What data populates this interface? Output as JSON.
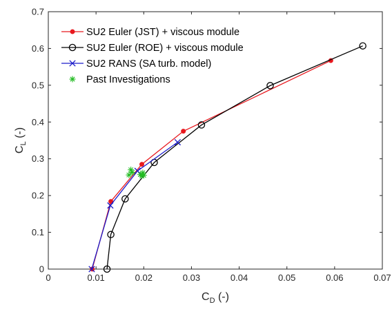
{
  "chart_data": {
    "type": "line",
    "title": "",
    "xlabel": "C_D (-)",
    "ylabel": "C_L (-)",
    "xlabel_parts": {
      "main": "C",
      "sub": "D",
      "rest": " (-)"
    },
    "ylabel_parts": {
      "main": "C",
      "sub": "L",
      "rest": " (-)"
    },
    "xlim": [
      0,
      0.07
    ],
    "ylim": [
      0,
      0.7
    ],
    "xticks": [
      "0",
      "0.01",
      "0.02",
      "0.03",
      "0.04",
      "0.05",
      "0.06",
      "0.07"
    ],
    "yticks": [
      "0",
      "0.1",
      "0.2",
      "0.3",
      "0.4",
      "0.5",
      "0.6",
      "0.7"
    ],
    "grid": false,
    "legend_position": "top-left",
    "series": [
      {
        "name": "SU2 Euler (JST) + viscous module",
        "color": "#e8191f",
        "marker": "dot",
        "line": true,
        "x": [
          0.0092,
          0.0131,
          0.0196,
          0.0283,
          0.0592
        ],
        "y": [
          0.0,
          0.184,
          0.285,
          0.375,
          0.567
        ]
      },
      {
        "name": "SU2 Euler (ROE) + viscous module",
        "color": "#000000",
        "marker": "circle",
        "line": true,
        "x": [
          0.0123,
          0.0131,
          0.0161,
          0.0222,
          0.0321,
          0.0465,
          0.0659
        ],
        "y": [
          0.0,
          0.094,
          0.191,
          0.29,
          0.392,
          0.499,
          0.607
        ]
      },
      {
        "name": "SU2 RANS (SA turb. model)",
        "color": "#1b1bc9",
        "marker": "x",
        "line": true,
        "x": [
          0.0091,
          0.013,
          0.0187,
          0.0271
        ],
        "y": [
          0.0,
          0.173,
          0.267,
          0.345
        ]
      },
      {
        "name": "Past Investigations",
        "color": "#22bb22",
        "marker": "asterisk",
        "line": false,
        "x": [
          0.0169,
          0.0173,
          0.0176,
          0.0193,
          0.0196,
          0.0198,
          0.02
        ],
        "y": [
          0.256,
          0.27,
          0.263,
          0.257,
          0.253,
          0.262,
          0.255
        ]
      }
    ]
  }
}
